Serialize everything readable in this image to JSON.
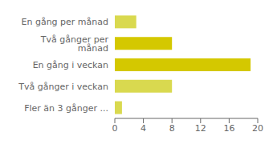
{
  "chart_data": {
    "type": "bar",
    "orientation": "horizontal",
    "categories": [
      "En gång per månad",
      "Två gånger per månad",
      "En gång i veckan",
      "Två gånger i veckan",
      "Fler än 3 gånger ..."
    ],
    "values": [
      3,
      8,
      19,
      8,
      1
    ],
    "colors": [
      "#d9d94f",
      "#d4c800",
      "#d4c800",
      "#d9d94f",
      "#d9d94f"
    ],
    "xlim": [
      0,
      20
    ],
    "xticks": [
      0,
      4,
      8,
      12,
      16,
      20
    ],
    "grid": false
  }
}
